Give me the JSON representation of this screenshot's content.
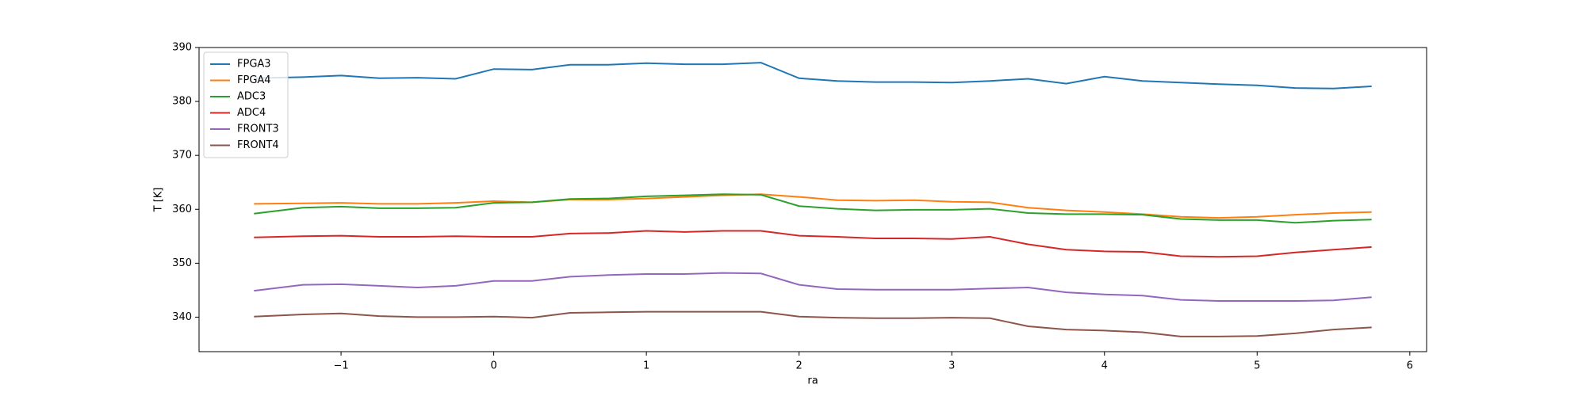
{
  "chart_data": {
    "type": "line",
    "xlabel": "ra",
    "ylabel": "T [K]",
    "x": [
      -1.57,
      -1.25,
      -1.0,
      -0.75,
      -0.5,
      -0.25,
      0,
      0.25,
      0.5,
      0.75,
      1.0,
      1.25,
      1.5,
      1.75,
      2.0,
      2.25,
      2.5,
      2.75,
      3.0,
      3.25,
      3.5,
      3.75,
      4.0,
      4.25,
      4.5,
      4.75,
      5.0,
      5.25,
      5.5,
      5.75
    ],
    "series": [
      {
        "name": "FPGA3",
        "color": "#1f77b4",
        "values": [
          384.3,
          384.5,
          384.8,
          384.3,
          384.4,
          384.2,
          386.0,
          385.9,
          386.8,
          386.8,
          387.1,
          386.9,
          386.9,
          387.2,
          384.3,
          383.8,
          383.6,
          383.6,
          383.5,
          383.8,
          384.2,
          383.3,
          384.6,
          383.8,
          383.5,
          383.2,
          383.0,
          382.5,
          382.4,
          382.8
        ]
      },
      {
        "name": "FPGA4",
        "color": "#ff7f0e",
        "values": [
          361.0,
          361.1,
          361.2,
          361.0,
          361.0,
          361.2,
          361.5,
          361.3,
          361.8,
          361.8,
          362.0,
          362.3,
          362.6,
          362.8,
          362.3,
          361.7,
          361.6,
          361.7,
          361.4,
          361.3,
          360.3,
          359.8,
          359.5,
          359.1,
          358.6,
          358.4,
          358.6,
          359.0,
          359.3,
          359.5
        ]
      },
      {
        "name": "ADC3",
        "color": "#2ca02c",
        "values": [
          359.2,
          360.3,
          360.5,
          360.2,
          360.2,
          360.3,
          361.2,
          361.3,
          361.9,
          362.0,
          362.4,
          362.6,
          362.8,
          362.7,
          360.6,
          360.1,
          359.8,
          359.9,
          359.9,
          360.1,
          359.3,
          359.1,
          359.1,
          359.0,
          358.2,
          358.0,
          358.0,
          357.5,
          357.9,
          358.1
        ]
      },
      {
        "name": "ADC4",
        "color": "#d62728",
        "values": [
          354.8,
          355.0,
          355.1,
          354.9,
          354.9,
          355.0,
          354.9,
          354.9,
          355.5,
          355.6,
          356.0,
          355.8,
          356.0,
          356.0,
          355.1,
          354.9,
          354.6,
          354.6,
          354.5,
          354.9,
          353.5,
          352.5,
          352.2,
          352.1,
          351.3,
          351.2,
          351.3,
          352.0,
          352.5,
          353.0
        ]
      },
      {
        "name": "FRONT3",
        "color": "#9467bd",
        "values": [
          344.9,
          346.0,
          346.1,
          345.8,
          345.5,
          345.8,
          346.7,
          346.7,
          347.5,
          347.8,
          348.0,
          348.0,
          348.2,
          348.1,
          346.0,
          345.2,
          345.1,
          345.1,
          345.1,
          345.3,
          345.5,
          344.6,
          344.2,
          344.0,
          343.2,
          343.0,
          343.0,
          343.0,
          343.1,
          343.7
        ]
      },
      {
        "name": "FRONT4",
        "color": "#8c564b",
        "values": [
          340.1,
          340.5,
          340.7,
          340.2,
          340.0,
          340.0,
          340.1,
          339.9,
          340.8,
          340.9,
          341.0,
          341.0,
          341.0,
          341.0,
          340.1,
          339.9,
          339.8,
          339.8,
          339.9,
          339.8,
          338.3,
          337.7,
          337.5,
          337.2,
          336.4,
          336.4,
          336.5,
          337.0,
          337.7,
          338.1
        ]
      }
    ],
    "xlim": [
      -1.93,
      6.11
    ],
    "ylim": [
      333.6,
      390
    ],
    "xticks": [
      {
        "value": -1,
        "label": "−1"
      },
      0,
      1,
      2,
      3,
      4,
      5,
      6
    ],
    "yticks": [
      340,
      350,
      360,
      370,
      380,
      390
    ],
    "legend": "upper left"
  }
}
